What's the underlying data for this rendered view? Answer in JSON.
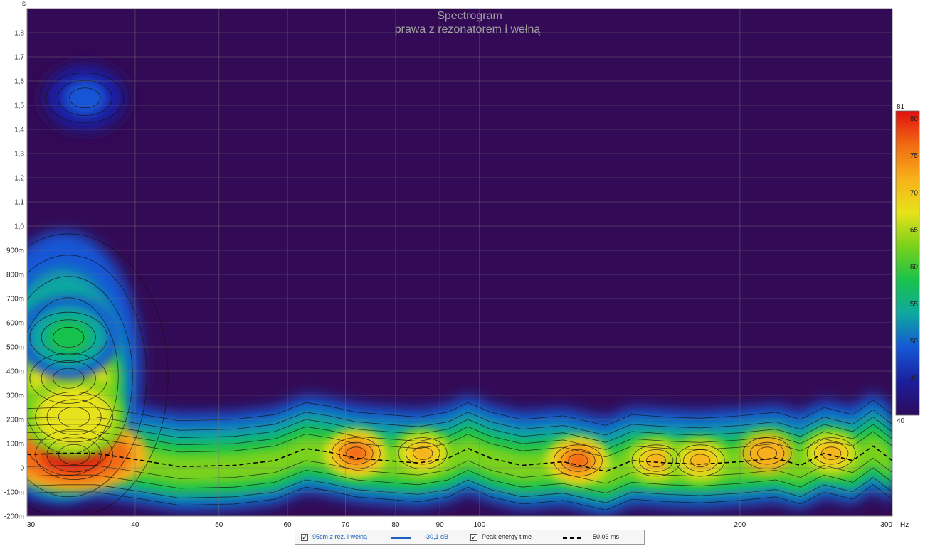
{
  "chart_data": {
    "type": "heatmap",
    "title": "Spectrogram",
    "subtitle": "prawa z rezonatorem i wełną",
    "y_unit_label": "s",
    "x_unit_label": "Hz",
    "x_scale": "log",
    "xlim": [
      30,
      300
    ],
    "ylim": [
      -0.2,
      1.9
    ],
    "x_ticks": [
      {
        "value": 30,
        "label": "30"
      },
      {
        "value": 40,
        "label": "40"
      },
      {
        "value": 50,
        "label": "50"
      },
      {
        "value": 60,
        "label": "60"
      },
      {
        "value": 70,
        "label": "70"
      },
      {
        "value": 80,
        "label": "80"
      },
      {
        "value": 90,
        "label": "90"
      },
      {
        "value": 100,
        "label": "100"
      },
      {
        "value": 200,
        "label": "200"
      },
      {
        "value": 300,
        "label": "300"
      }
    ],
    "y_ticks": [
      {
        "value": 1.8,
        "label": "1,8"
      },
      {
        "value": 1.7,
        "label": "1,7"
      },
      {
        "value": 1.6,
        "label": "1,6"
      },
      {
        "value": 1.5,
        "label": "1,5"
      },
      {
        "value": 1.4,
        "label": "1,4"
      },
      {
        "value": 1.3,
        "label": "1,3"
      },
      {
        "value": 1.2,
        "label": "1,2"
      },
      {
        "value": 1.1,
        "label": "1,1"
      },
      {
        "value": 1.0,
        "label": "1,0"
      },
      {
        "value": 0.9,
        "label": "900m"
      },
      {
        "value": 0.8,
        "label": "800m"
      },
      {
        "value": 0.7,
        "label": "700m"
      },
      {
        "value": 0.6,
        "label": "600m"
      },
      {
        "value": 0.5,
        "label": "500m"
      },
      {
        "value": 0.4,
        "label": "400m"
      },
      {
        "value": 0.3,
        "label": "300m"
      },
      {
        "value": 0.2,
        "label": "200m"
      },
      {
        "value": 0.1,
        "label": "100m"
      },
      {
        "value": 0.0,
        "label": "0"
      },
      {
        "value": -0.1,
        "label": "-100m"
      },
      {
        "value": -0.2,
        "label": "-200m"
      }
    ],
    "colorbar": {
      "min": 40,
      "max": 81,
      "top_label": "81",
      "bottom_label": "40",
      "ticks": [
        80,
        75,
        70,
        65,
        60,
        55,
        50,
        45
      ],
      "stops": [
        "#2e0a5c",
        "#1b1f9e",
        "#1557d6",
        "#0ea8a0",
        "#19c24b",
        "#7ad11a",
        "#e8e21a",
        "#f7b01a",
        "#f26a12",
        "#e01010"
      ]
    },
    "background_color": "#330a55",
    "grid": true,
    "peak_energy_time": [
      [
        30,
        0.055
      ],
      [
        33,
        0.06
      ],
      [
        36,
        0.06
      ],
      [
        40,
        0.035
      ],
      [
        45,
        0.005
      ],
      [
        52,
        0.01
      ],
      [
        58,
        0.03
      ],
      [
        63,
        0.08
      ],
      [
        67,
        0.065
      ],
      [
        72,
        0.04
      ],
      [
        78,
        0.03
      ],
      [
        85,
        0.02
      ],
      [
        92,
        0.04
      ],
      [
        97,
        0.08
      ],
      [
        103,
        0.04
      ],
      [
        112,
        0.01
      ],
      [
        125,
        0.025
      ],
      [
        140,
        -0.015
      ],
      [
        150,
        0.03
      ],
      [
        165,
        0.02
      ],
      [
        180,
        0.015
      ],
      [
        200,
        0.025
      ],
      [
        220,
        0.04
      ],
      [
        235,
        0.01
      ],
      [
        250,
        0.06
      ],
      [
        270,
        0.03
      ],
      [
        285,
        0.09
      ],
      [
        300,
        0.03
      ]
    ],
    "hotspots": [
      {
        "freq": 34,
        "time": 0.055,
        "level": 80
      },
      {
        "freq": 33.5,
        "time": 0.37,
        "level": 70
      },
      {
        "freq": 34,
        "time": 0.21,
        "level": 69
      },
      {
        "freq": 33.5,
        "time": 0.54,
        "level": 56
      },
      {
        "freq": 72,
        "time": 0.06,
        "level": 75
      },
      {
        "freq": 86,
        "time": 0.06,
        "level": 70
      },
      {
        "freq": 130,
        "time": 0.03,
        "level": 77
      },
      {
        "freq": 160,
        "time": 0.03,
        "level": 72
      },
      {
        "freq": 180,
        "time": 0.03,
        "level": 71
      },
      {
        "freq": 215,
        "time": 0.06,
        "level": 73
      },
      {
        "freq": 255,
        "time": 0.06,
        "level": 72
      },
      {
        "freq": 35,
        "time": 1.53,
        "level": 47
      }
    ]
  },
  "legend": {
    "series_name": "95cm z rez. i wełną",
    "series_value": "30,1 dB",
    "series_color": "#1f5fbf",
    "peak_label": "Peak energy time",
    "peak_value": "50,03 ms",
    "check_mark": "✓"
  }
}
